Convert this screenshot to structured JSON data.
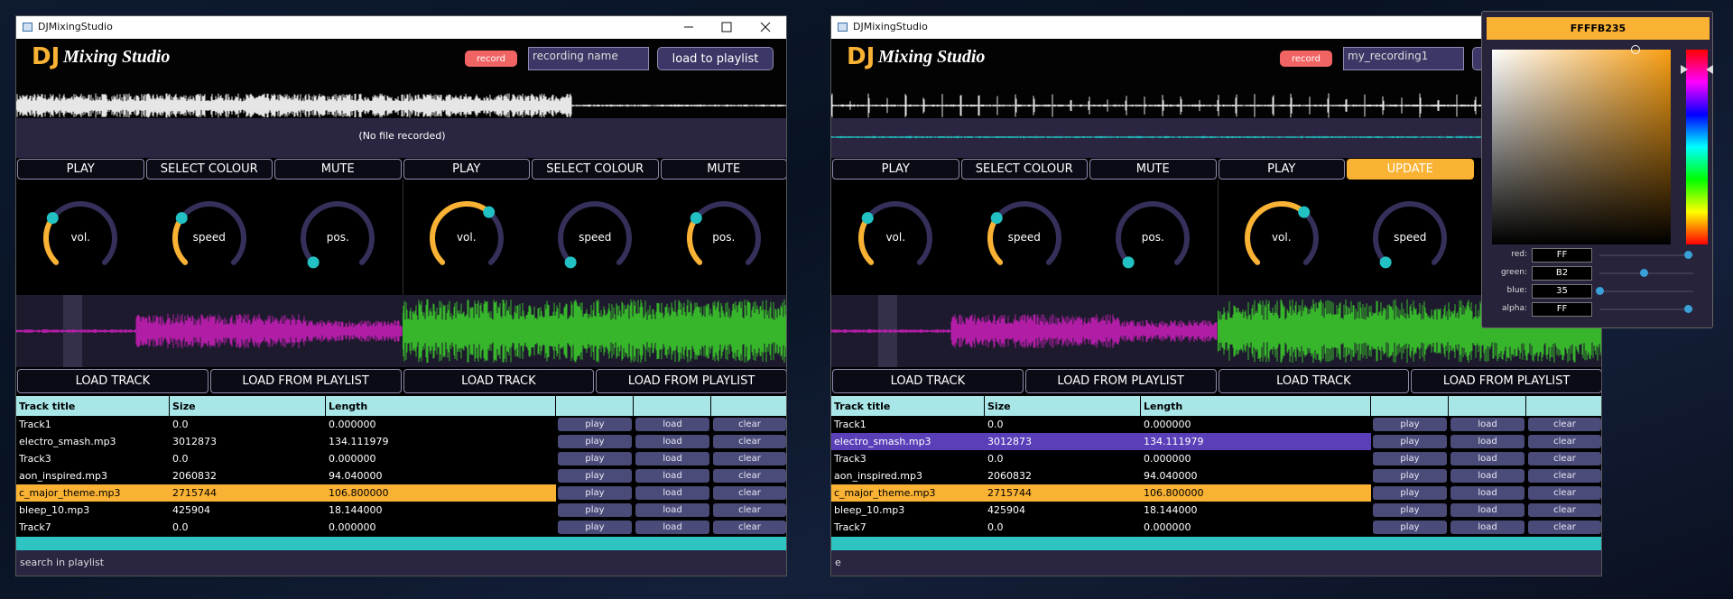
{
  "windows": [
    {
      "title": "DJMixingStudio",
      "logo": {
        "dj": "DJ",
        "text": "Mixing Studio"
      },
      "record": "record",
      "recording_name": "recording name",
      "load_to_playlist": "load to playlist",
      "status": "(No file recorded)",
      "deck_buttons": [
        "PLAY",
        "SELECT COLOUR",
        "MUTE",
        "PLAY",
        "SELECT COLOUR",
        "MUTE"
      ],
      "knobs": [
        "vol.",
        "speed",
        "pos.",
        "vol.",
        "speed",
        "pos."
      ],
      "load_buttons": [
        "LOAD TRACK",
        "LOAD FROM PLAYLIST",
        "LOAD TRACK",
        "LOAD FROM PLAYLIST"
      ],
      "table": {
        "headers": [
          "Track title",
          "Size",
          "Length"
        ],
        "actions": [
          "play",
          "load",
          "clear"
        ],
        "rows": [
          [
            "Track1",
            "0.0",
            "0.000000"
          ],
          [
            "electro_smash.mp3",
            "3012873",
            "134.111979"
          ],
          [
            "Track3",
            "0.0",
            "0.000000"
          ],
          [
            "aon_inspired.mp3",
            "2060832",
            "94.040000"
          ],
          [
            "c_major_theme.mp3",
            "2715744",
            "106.800000"
          ],
          [
            "bleep_10.mp3",
            "425904",
            "18.144000"
          ],
          [
            "Track7",
            "0.0",
            "0.000000"
          ]
        ]
      },
      "search": "search in playlist"
    },
    {
      "title": "DJMixingStudio",
      "logo": {
        "dj": "DJ",
        "text": "Mixing Studio"
      },
      "record": "record",
      "recording_name": "my_recording1",
      "deck_buttons": [
        "PLAY",
        "SELECT COLOUR",
        "MUTE",
        "PLAY",
        "UPDATE"
      ],
      "knobs": [
        "vol.",
        "speed",
        "pos.",
        "vol.",
        "speed"
      ],
      "load_buttons": [
        "LOAD TRACK",
        "LOAD FROM PLAYLIST",
        "LOAD TRACK",
        "LOAD FROM PLAYLIST"
      ],
      "table": {
        "headers": [
          "Track title",
          "Size",
          "Length"
        ],
        "actions": [
          "play",
          "load",
          "clear"
        ],
        "rows": [
          [
            "Track1",
            "0.0",
            "0.000000"
          ],
          [
            "electro_smash.mp3",
            "3012873",
            "134.111979"
          ],
          [
            "Track3",
            "0.0",
            "0.000000"
          ],
          [
            "aon_inspired.mp3",
            "2060832",
            "94.040000"
          ],
          [
            "c_major_theme.mp3",
            "2715744",
            "106.800000"
          ],
          [
            "bleep_10.mp3",
            "425904",
            "18.144000"
          ],
          [
            "Track7",
            "0.0",
            "0.000000"
          ]
        ]
      },
      "search": "e"
    }
  ],
  "color_picker": {
    "hex": "FFFFB235",
    "fields": [
      {
        "label": "red:",
        "value": "FF"
      },
      {
        "label": "green:",
        "value": "B2"
      },
      {
        "label": "blue:",
        "value": "35"
      },
      {
        "label": "alpha:",
        "value": "FF"
      }
    ]
  }
}
